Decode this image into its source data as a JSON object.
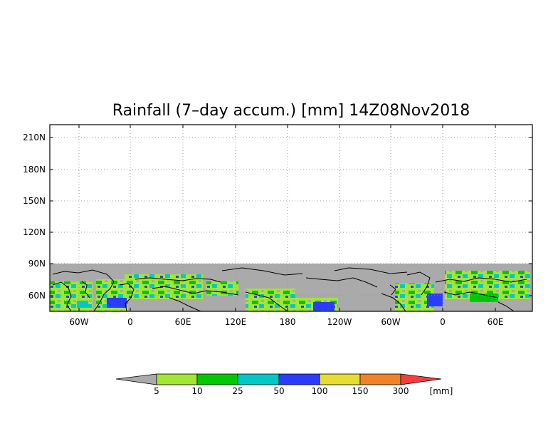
{
  "map": {
    "title": "Rainfall (7–day accum.) [mm] 14Z08Nov2018",
    "lat_labels": [
      "210N",
      "180N",
      "150N",
      "120N",
      "90N",
      "60N"
    ],
    "lon_labels": [
      "60W",
      "0",
      "60E",
      "120E",
      "180",
      "120W",
      "60W",
      "0",
      "60E"
    ],
    "no_data_color": "#aaaaaa",
    "gridlines": "dotted"
  },
  "colorbar": {
    "unit": "[mm]",
    "tick_labels": [
      "5",
      "10",
      "25",
      "50",
      "100",
      "150",
      "300"
    ],
    "colors": [
      "#aaaaaa",
      "#a0e632",
      "#00c800",
      "#00c8c8",
      "#2a3cff",
      "#e6dc32",
      "#f08228",
      "#fa3c3c"
    ]
  },
  "chart_data": {
    "type": "heatmap",
    "title": "Rainfall (7–day accum.) [mm] 14Z08Nov2018",
    "y_tick_labels": [
      "210N",
      "180N",
      "150N",
      "120N",
      "90N",
      "60N"
    ],
    "x_tick_labels": [
      "60W",
      "0",
      "60E",
      "120E",
      "180",
      "120W",
      "60W",
      "0",
      "60E"
    ],
    "legend_bins": [
      "5",
      "10",
      "25",
      "50",
      "100",
      "150",
      "300"
    ],
    "legend_unit": "[mm]",
    "grid": true
  }
}
